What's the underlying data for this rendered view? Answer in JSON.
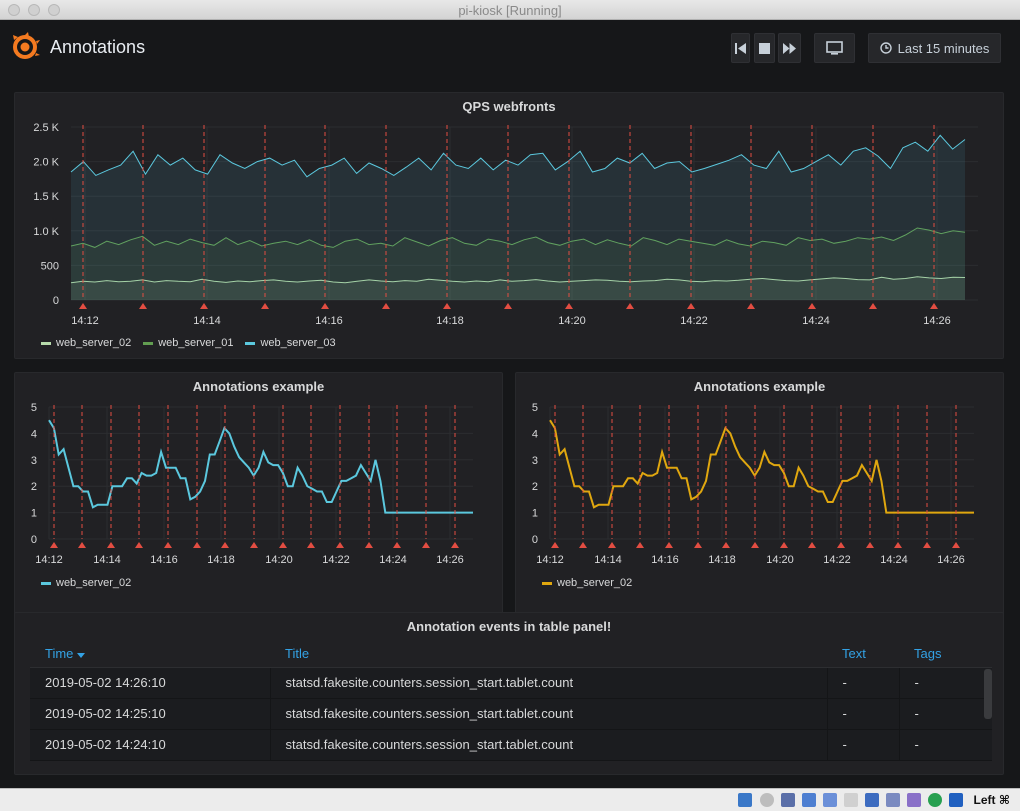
{
  "window": {
    "title": "pi-kiosk [Running]"
  },
  "header": {
    "title": "Annotations",
    "time_picker_label": "Last 15 minutes"
  },
  "panels": {
    "qps": {
      "title": "QPS webfronts",
      "legend": [
        {
          "name": "web_server_02",
          "color": "#b7dbab"
        },
        {
          "name": "web_server_01",
          "color": "#629e51"
        },
        {
          "name": "web_server_03",
          "color": "#5bc8de"
        }
      ]
    },
    "annot_left": {
      "title": "Annotations example",
      "legend": [
        {
          "name": "web_server_02",
          "color": "#5bc8de"
        }
      ]
    },
    "annot_right": {
      "title": "Annotations example",
      "legend": [
        {
          "name": "web_server_02",
          "color": "#e0a70f"
        }
      ]
    },
    "table": {
      "title": "Annotation events in table panel!",
      "columns": {
        "time": "Time",
        "title": "Title",
        "text": "Text",
        "tags": "Tags"
      },
      "rows": [
        {
          "time": "2019-05-02 14:26:10",
          "title": "statsd.fakesite.counters.session_start.tablet.count",
          "text": "-",
          "tags": "-"
        },
        {
          "time": "2019-05-02 14:25:10",
          "title": "statsd.fakesite.counters.session_start.tablet.count",
          "text": "-",
          "tags": "-"
        },
        {
          "time": "2019-05-02 14:24:10",
          "title": "statsd.fakesite.counters.session_start.tablet.count",
          "text": "-",
          "tags": "-"
        }
      ]
    }
  },
  "taskbar": {
    "host_key_label": "Left ⌘"
  },
  "icons": [
    "grafana-logo-icon",
    "step-back-icon",
    "stop-icon",
    "fast-forward-icon",
    "tv-monitor-icon",
    "clock-icon",
    "sort-desc-icon"
  ],
  "chart_data": [
    {
      "type": "line",
      "title": "QPS webfronts",
      "x_ticks": [
        "14:12",
        "14:14",
        "14:16",
        "14:18",
        "14:20",
        "14:22",
        "14:24",
        "14:26"
      ],
      "y_ticks": [
        "0",
        "500",
        "1.0 K",
        "1.5 K",
        "2.0 K",
        "2.5 K"
      ],
      "ylim": [
        0,
        2500
      ],
      "grid": true,
      "legend_placement": "bottom-left",
      "series": [
        {
          "name": "web_server_02",
          "color": "#b7dbab",
          "values": [
            250,
            270,
            260,
            280,
            265,
            270,
            290,
            260,
            280,
            270,
            265,
            300,
            270,
            255,
            275,
            265,
            280,
            290,
            270,
            260,
            275,
            285,
            260,
            250,
            270,
            290,
            275,
            265,
            280,
            270,
            300,
            285,
            270,
            260,
            275,
            265,
            290,
            270,
            280,
            295,
            275,
            260,
            270,
            280,
            290,
            285,
            270,
            265,
            275,
            280,
            300,
            290,
            270,
            265,
            280,
            275,
            285,
            300,
            310,
            295,
            280,
            275,
            290,
            305,
            320,
            310,
            295,
            290,
            330,
            300,
            310,
            335,
            320,
            310,
            330,
            325
          ]
        },
        {
          "name": "web_server_01",
          "color": "#629e51",
          "values": [
            780,
            820,
            760,
            850,
            800,
            870,
            920,
            790,
            850,
            800,
            880,
            830,
            790,
            900,
            800,
            860,
            780,
            820,
            850,
            800,
            870,
            790,
            760,
            850,
            880,
            800,
            820,
            780,
            900,
            840,
            780,
            860,
            900,
            820,
            790,
            880,
            850,
            800,
            870,
            910,
            830,
            790,
            850,
            880,
            800,
            870,
            820,
            780,
            900,
            860,
            800,
            880,
            850,
            820,
            790,
            870,
            810,
            780,
            850,
            830,
            790,
            900,
            860,
            880,
            820,
            850,
            900,
            880,
            910,
            860,
            940,
            1040,
            1010,
            960,
            1000,
            980
          ]
        },
        {
          "name": "web_server_03",
          "color": "#5bc8de",
          "values": [
            1850,
            2000,
            1800,
            1880,
            1950,
            2150,
            1820,
            2100,
            1950,
            2050,
            1880,
            1820,
            2100,
            1980,
            1900,
            2000,
            2050,
            1950,
            2020,
            1780,
            1900,
            1950,
            2050,
            1830,
            1980,
            1900,
            1800,
            1920,
            2050,
            1880,
            2120,
            1950,
            1900,
            2050,
            1880,
            2020,
            1950,
            2100,
            2120,
            1880,
            2000,
            2150,
            1850,
            1900,
            2050,
            1980,
            2120,
            1900,
            1980,
            2000,
            1850,
            1900,
            1960,
            2020,
            2100,
            1950,
            1900,
            2150,
            1850,
            1900,
            2000,
            2100,
            1950,
            2150,
            2200,
            2080,
            1900,
            2200,
            2280,
            2150,
            2380,
            2180,
            2320
          ]
        }
      ]
    },
    {
      "type": "line",
      "title": "Annotations example",
      "x_ticks": [
        "14:12",
        "14:14",
        "14:16",
        "14:18",
        "14:20",
        "14:22",
        "14:24",
        "14:26"
      ],
      "y_ticks": [
        "0",
        "1",
        "2",
        "3",
        "4",
        "5"
      ],
      "ylim": [
        0,
        5
      ],
      "grid": true,
      "legend_placement": "bottom-left",
      "series": [
        {
          "name": "web_server_02",
          "color": "#5bc8de",
          "values": [
            4.5,
            4.2,
            3.2,
            3.4,
            2.7,
            2.0,
            2.0,
            1.8,
            1.8,
            1.2,
            1.3,
            1.3,
            1.3,
            2.0,
            2.0,
            2.0,
            2.3,
            2.3,
            2.1,
            2.5,
            2.4,
            2.4,
            2.5,
            3.3,
            2.7,
            2.7,
            2.7,
            2.3,
            2.3,
            1.5,
            1.6,
            1.8,
            2.2,
            3.2,
            3.2,
            3.7,
            4.2,
            4.0,
            3.5,
            3.1,
            2.9,
            2.7,
            2.4,
            2.7,
            3.3,
            2.9,
            2.8,
            2.8,
            2.5,
            2.0,
            2.0,
            2.7,
            2.4,
            2.0,
            1.9,
            1.8,
            1.8,
            1.4,
            1.4,
            1.8,
            2.2,
            2.2,
            2.3,
            2.4,
            2.8,
            2.5,
            2.2,
            3.0,
            2.2,
            1.0,
            1.0,
            1.0,
            1.0,
            1.0,
            1.0,
            1.0,
            1.0,
            1.0,
            1.0,
            1.0,
            1.0,
            1.0,
            1.0,
            1.0,
            1.0,
            1.0,
            1.0,
            1.0
          ]
        }
      ]
    },
    {
      "type": "line",
      "title": "Annotations example",
      "x_ticks": [
        "14:12",
        "14:14",
        "14:16",
        "14:18",
        "14:20",
        "14:22",
        "14:24",
        "14:26"
      ],
      "y_ticks": [
        "0",
        "1",
        "2",
        "3",
        "4",
        "5"
      ],
      "ylim": [
        0,
        5
      ],
      "grid": true,
      "legend_placement": "bottom-left",
      "series": [
        {
          "name": "web_server_02",
          "color": "#e0a70f",
          "values": [
            4.5,
            4.2,
            3.2,
            3.4,
            2.7,
            2.0,
            2.0,
            1.8,
            1.8,
            1.2,
            1.3,
            1.3,
            1.3,
            2.0,
            2.0,
            2.0,
            2.3,
            2.3,
            2.1,
            2.5,
            2.4,
            2.4,
            2.5,
            3.3,
            2.7,
            2.7,
            2.7,
            2.3,
            2.3,
            1.5,
            1.6,
            1.8,
            2.2,
            3.2,
            3.2,
            3.7,
            4.2,
            4.0,
            3.5,
            3.1,
            2.9,
            2.7,
            2.4,
            2.7,
            3.3,
            2.9,
            2.8,
            2.8,
            2.5,
            2.0,
            2.0,
            2.7,
            2.4,
            2.0,
            1.9,
            1.8,
            1.8,
            1.4,
            1.4,
            1.8,
            2.2,
            2.2,
            2.3,
            2.4,
            2.8,
            2.5,
            2.2,
            3.0,
            2.2,
            1.0,
            1.0,
            1.0,
            1.0,
            1.0,
            1.0,
            1.0,
            1.0,
            1.0,
            1.0,
            1.0,
            1.0,
            1.0,
            1.0,
            1.0,
            1.0,
            1.0,
            1.0,
            1.0
          ]
        }
      ]
    }
  ]
}
